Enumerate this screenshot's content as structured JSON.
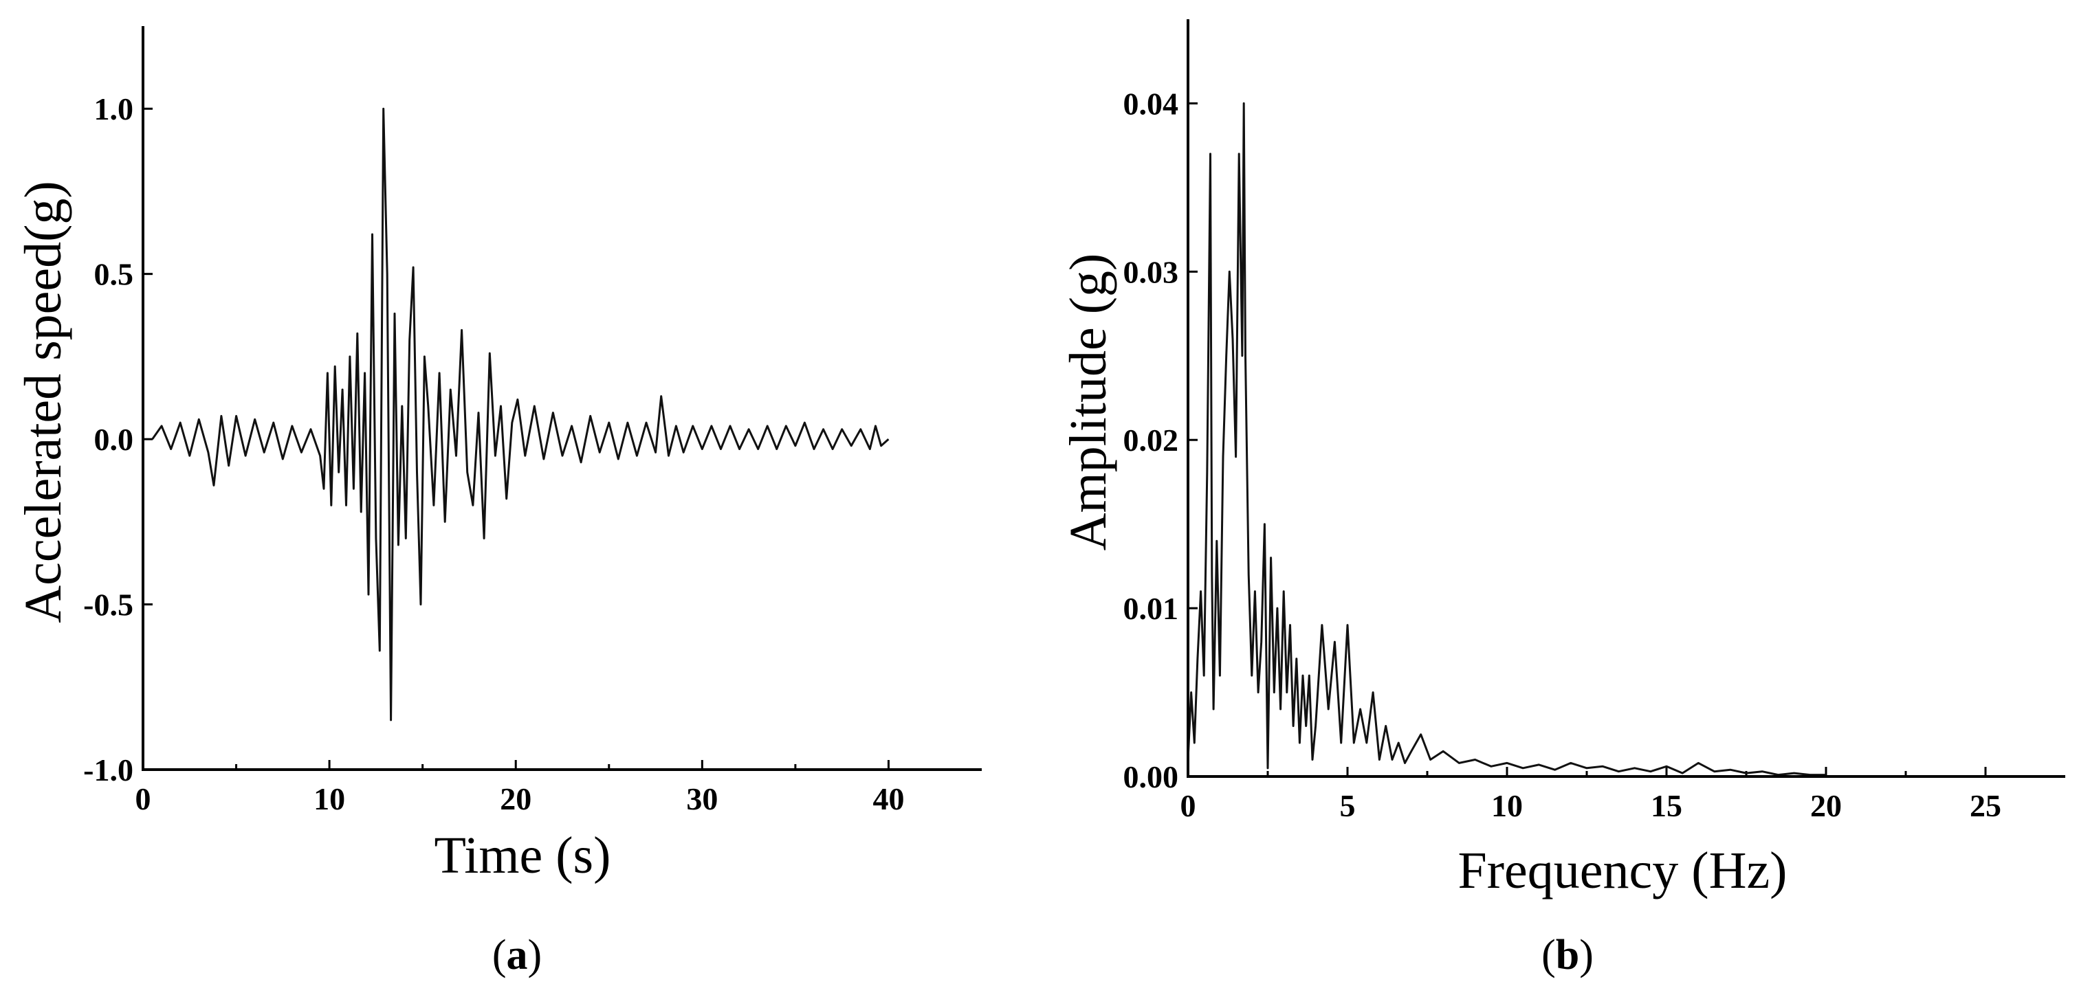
{
  "chart_data": [
    {
      "type": "line",
      "panel_label": "a",
      "xlabel": "Time (s)",
      "ylabel": "Accelerated speed(g)",
      "xlim": [
        0,
        45
      ],
      "ylim": [
        -1.0,
        1.25
      ],
      "xticks": [
        0,
        10,
        20,
        30,
        40
      ],
      "xtick_labels": [
        "0",
        "10",
        "20",
        "30",
        "40"
      ],
      "yticks": [
        -1.0,
        -0.5,
        0.0,
        0.5,
        1.0
      ],
      "ytick_labels": [
        "-1.0",
        "-0.5",
        "0.0",
        "0.5",
        "1.0"
      ],
      "grid": false,
      "legend": "none",
      "line_color": "#111111",
      "series": [
        {
          "x": [
            0.5,
            1.0,
            1.5,
            2.0,
            2.5,
            3.0,
            3.5,
            3.8,
            4.2,
            4.6,
            5.0,
            5.5,
            6.0,
            6.5,
            7.0,
            7.5,
            8.0,
            8.5,
            9.0,
            9.5,
            9.7,
            9.9,
            10.1,
            10.3,
            10.5,
            10.7,
            10.9,
            11.1,
            11.3,
            11.5,
            11.7,
            11.9,
            12.1,
            12.3,
            12.5,
            12.7,
            12.9,
            13.1,
            13.3,
            13.5,
            13.7,
            13.9,
            14.1,
            14.3,
            14.5,
            14.7,
            14.9,
            15.1,
            15.3,
            15.6,
            15.9,
            16.2,
            16.5,
            16.8,
            17.1,
            17.4,
            17.7,
            18.0,
            18.3,
            18.6,
            18.9,
            19.2,
            19.5,
            19.8,
            20.1,
            20.5,
            21.0,
            21.5,
            22.0,
            22.5,
            23.0,
            23.5,
            24.0,
            24.5,
            25.0,
            25.5,
            26.0,
            26.5,
            27.0,
            27.5,
            27.8,
            28.2,
            28.6,
            29.0,
            29.5,
            30.0,
            30.5,
            31.0,
            31.5,
            32.0,
            32.5,
            33.0,
            33.5,
            34.0,
            34.5,
            35.0,
            35.5,
            36.0,
            36.5,
            37.0,
            37.5,
            38.0,
            38.5,
            39.0,
            39.3,
            39.6,
            40.0
          ],
          "y": [
            0.0,
            0.04,
            -0.03,
            0.05,
            -0.05,
            0.06,
            -0.04,
            -0.14,
            0.07,
            -0.08,
            0.07,
            -0.05,
            0.06,
            -0.04,
            0.05,
            -0.06,
            0.04,
            -0.04,
            0.03,
            -0.05,
            -0.15,
            0.2,
            -0.2,
            0.22,
            -0.1,
            0.15,
            -0.2,
            0.25,
            -0.15,
            0.32,
            -0.22,
            0.2,
            -0.47,
            0.62,
            -0.3,
            -0.64,
            1.0,
            0.5,
            -0.85,
            0.38,
            -0.32,
            0.1,
            -0.3,
            0.3,
            0.52,
            -0.1,
            -0.5,
            0.25,
            0.1,
            -0.2,
            0.2,
            -0.25,
            0.15,
            -0.05,
            0.33,
            -0.1,
            -0.2,
            0.08,
            -0.3,
            0.26,
            -0.05,
            0.1,
            -0.18,
            0.05,
            0.12,
            -0.05,
            0.1,
            -0.06,
            0.08,
            -0.05,
            0.04,
            -0.07,
            0.07,
            -0.04,
            0.05,
            -0.06,
            0.05,
            -0.05,
            0.05,
            -0.04,
            0.13,
            -0.05,
            0.04,
            -0.04,
            0.04,
            -0.03,
            0.04,
            -0.03,
            0.04,
            -0.03,
            0.03,
            -0.03,
            0.04,
            -0.03,
            0.04,
            -0.02,
            0.05,
            -0.03,
            0.03,
            -0.03,
            0.03,
            -0.02,
            0.03,
            -0.03,
            0.04,
            -0.02,
            0.0
          ]
        }
      ]
    },
    {
      "type": "line",
      "panel_label": "b",
      "xlabel": "Frequency (Hz)",
      "ylabel": "Amplitude (g)",
      "xlim": [
        0,
        27.5
      ],
      "ylim": [
        0,
        0.045
      ],
      "xticks": [
        0,
        5,
        10,
        15,
        20,
        25
      ],
      "xtick_labels": [
        "0",
        "5",
        "10",
        "15",
        "20",
        "25"
      ],
      "yticks": [
        0.0,
        0.01,
        0.02,
        0.03,
        0.04
      ],
      "ytick_labels": [
        "0.00",
        "0.01",
        "0.02",
        "0.03",
        "0.04"
      ],
      "grid": false,
      "legend": "none",
      "line_color": "#111111",
      "series": [
        {
          "x": [
            0.0,
            0.1,
            0.2,
            0.3,
            0.4,
            0.5,
            0.6,
            0.7,
            0.75,
            0.8,
            0.9,
            1.0,
            1.1,
            1.2,
            1.3,
            1.4,
            1.5,
            1.6,
            1.7,
            1.75,
            1.8,
            1.9,
            2.0,
            2.1,
            2.2,
            2.3,
            2.4,
            2.5,
            2.6,
            2.7,
            2.8,
            2.9,
            3.0,
            3.1,
            3.2,
            3.3,
            3.4,
            3.5,
            3.6,
            3.7,
            3.8,
            3.9,
            4.0,
            4.2,
            4.4,
            4.6,
            4.8,
            5.0,
            5.2,
            5.4,
            5.6,
            5.8,
            6.0,
            6.2,
            6.4,
            6.6,
            6.8,
            7.0,
            7.3,
            7.6,
            8.0,
            8.5,
            9.0,
            9.5,
            10.0,
            10.5,
            11.0,
            11.5,
            12.0,
            12.5,
            13.0,
            13.5,
            14.0,
            14.5,
            15.0,
            15.5,
            16.0,
            16.5,
            17.0,
            17.5,
            18.0,
            18.5,
            19.0,
            19.5,
            20.0
          ],
          "y": [
            0.001,
            0.005,
            0.002,
            0.007,
            0.011,
            0.006,
            0.018,
            0.037,
            0.012,
            0.004,
            0.014,
            0.006,
            0.019,
            0.025,
            0.03,
            0.026,
            0.019,
            0.037,
            0.025,
            0.04,
            0.025,
            0.012,
            0.006,
            0.011,
            0.005,
            0.008,
            0.015,
            0.0005,
            0.013,
            0.005,
            0.01,
            0.004,
            0.011,
            0.005,
            0.009,
            0.003,
            0.007,
            0.002,
            0.006,
            0.003,
            0.006,
            0.001,
            0.003,
            0.009,
            0.004,
            0.008,
            0.002,
            0.009,
            0.002,
            0.004,
            0.002,
            0.005,
            0.001,
            0.003,
            0.001,
            0.002,
            0.0008,
            0.0015,
            0.0025,
            0.001,
            0.0015,
            0.0008,
            0.001,
            0.0006,
            0.0008,
            0.0005,
            0.0007,
            0.0004,
            0.0008,
            0.0005,
            0.0006,
            0.0003,
            0.0005,
            0.0003,
            0.0006,
            0.0002,
            0.0008,
            0.0003,
            0.0004,
            0.0002,
            0.0003,
            0.0001,
            0.0002,
            0.0001,
            0.0001
          ]
        }
      ]
    }
  ]
}
